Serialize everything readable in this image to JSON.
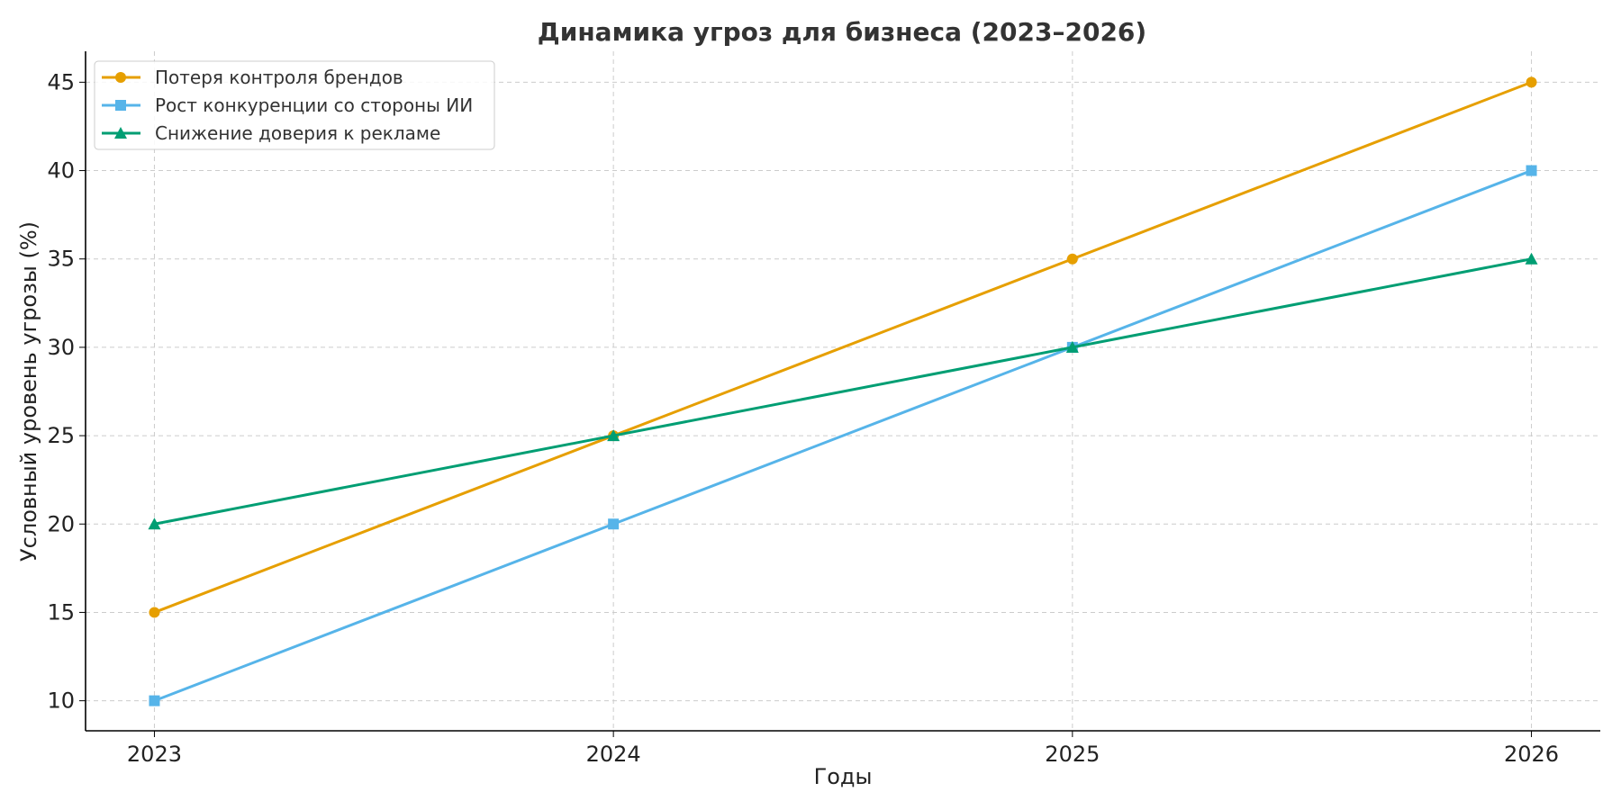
{
  "chart_data": {
    "type": "line",
    "title": "Динамика угроз для бизнеса (2023–2026)",
    "xlabel": "Годы",
    "ylabel": "Условный уровень угрозы (%)",
    "x": [
      2023,
      2024,
      2025,
      2026
    ],
    "xticks": [
      "2023",
      "2024",
      "2025",
      "2026"
    ],
    "yticks": [
      "10",
      "15",
      "20",
      "25",
      "30",
      "35",
      "40",
      "45"
    ],
    "xlim": [
      2022.85,
      2026.15
    ],
    "ylim": [
      8.3,
      46.75
    ],
    "grid": true,
    "legend_position": "top-left",
    "series": [
      {
        "name": "Потеря контроля брендов",
        "values": [
          15,
          25,
          35,
          45
        ],
        "color": "#E69F00",
        "marker": "circle"
      },
      {
        "name": "Рост конкуренции со стороны ИИ",
        "values": [
          10,
          20,
          30,
          40
        ],
        "color": "#56B4E9",
        "marker": "square"
      },
      {
        "name": "Снижение доверия к рекламе",
        "values": [
          20,
          25,
          30,
          35
        ],
        "color": "#009E73",
        "marker": "triangle"
      }
    ]
  }
}
